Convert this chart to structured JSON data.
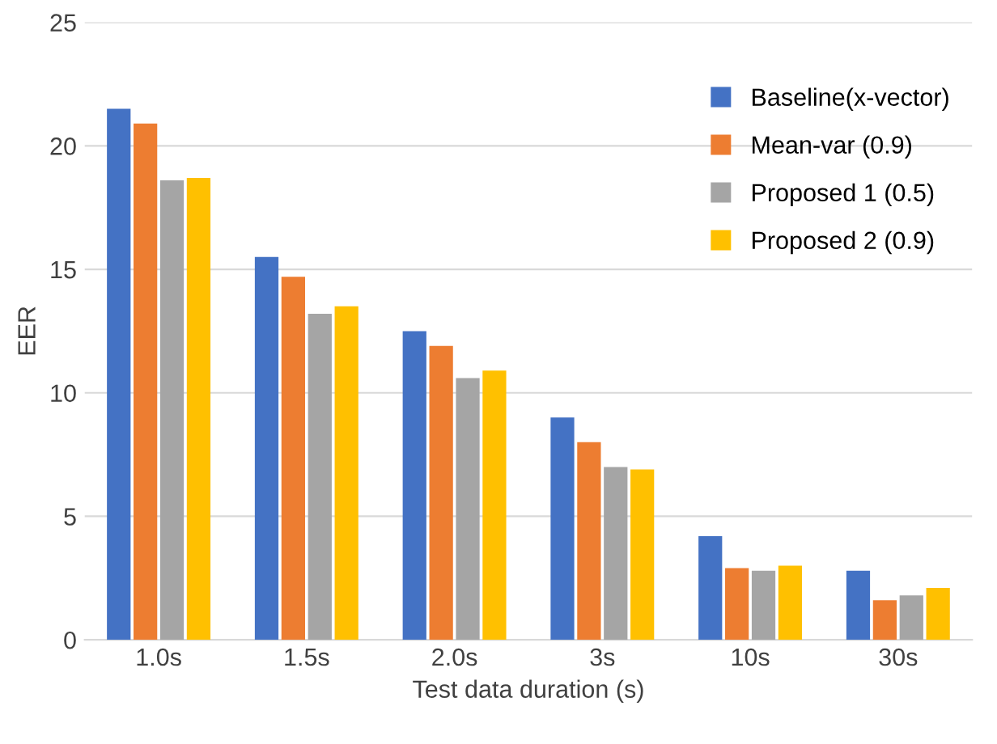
{
  "chart_data": {
    "type": "bar",
    "xlabel": "Test data duration (s)",
    "ylabel": "EER",
    "categories": [
      "1.0s",
      "1.5s",
      "2.0s",
      "3s",
      "10s",
      "30s"
    ],
    "series": [
      {
        "name": "Baseline(x-vector)",
        "color": "#4472c4",
        "values": [
          21.5,
          15.5,
          12.5,
          9.0,
          4.2,
          2.8
        ]
      },
      {
        "name": "Mean-var (0.9)",
        "color": "#ed7d31",
        "values": [
          20.9,
          14.7,
          11.9,
          8.0,
          2.9,
          1.6
        ]
      },
      {
        "name": "Proposed 1 (0.5)",
        "color": "#a5a5a5",
        "values": [
          18.6,
          13.2,
          10.6,
          7.0,
          2.8,
          1.8
        ]
      },
      {
        "name": "Proposed 2 (0.9)",
        "color": "#ffc000",
        "values": [
          18.7,
          13.5,
          10.9,
          6.9,
          3.0,
          2.1
        ]
      }
    ],
    "ylim": [
      0,
      25
    ],
    "yticks": [
      0,
      5,
      10,
      15,
      20,
      25
    ],
    "grid": "y",
    "legend": "top right"
  }
}
